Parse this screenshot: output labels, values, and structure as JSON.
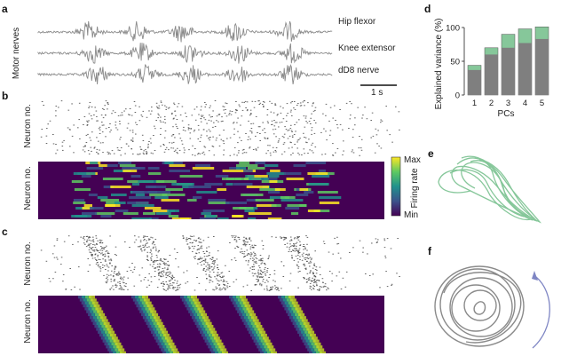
{
  "panel_labels": {
    "a": "a",
    "b": "b",
    "c": "c",
    "d": "d",
    "e": "e",
    "f": "f"
  },
  "panel_a": {
    "ylabel": "Motor nerves",
    "traces": [
      "Hip flexor",
      "Knee extensor",
      "dD8 nerve"
    ],
    "scalebar": "1 s"
  },
  "panel_b": {
    "raster_ylabel": "Neuron no.",
    "heatmap_ylabel": "Neuron no.",
    "colorbar": {
      "max": "Max",
      "min": "Min",
      "label": "Firing rate"
    }
  },
  "panel_c": {
    "raster_ylabel": "Neuron no.",
    "heatmap_ylabel": "Neuron no."
  },
  "colors": {
    "trace": "#8a8a8a",
    "bar_gray": "#7f7f7f",
    "bar_green": "#86c79a",
    "trajectory_green": "#86c79a",
    "trajectory_gray": "#8a8a8a",
    "arrow_blue": "#7f86c4"
  },
  "chart_data": {
    "type": "bar",
    "categories": [
      "1",
      "2",
      "3",
      "4",
      "5"
    ],
    "series": [
      {
        "values": [
          37,
          60,
          70,
          77,
          83
        ]
      },
      {
        "values": [
          44,
          70,
          90,
          98,
          101
        ]
      }
    ],
    "xlabel": "PCs",
    "ylabel": "Explained variance (%)",
    "ylim": [
      0,
      100
    ],
    "yticks": [
      "0",
      "50",
      "100"
    ]
  }
}
